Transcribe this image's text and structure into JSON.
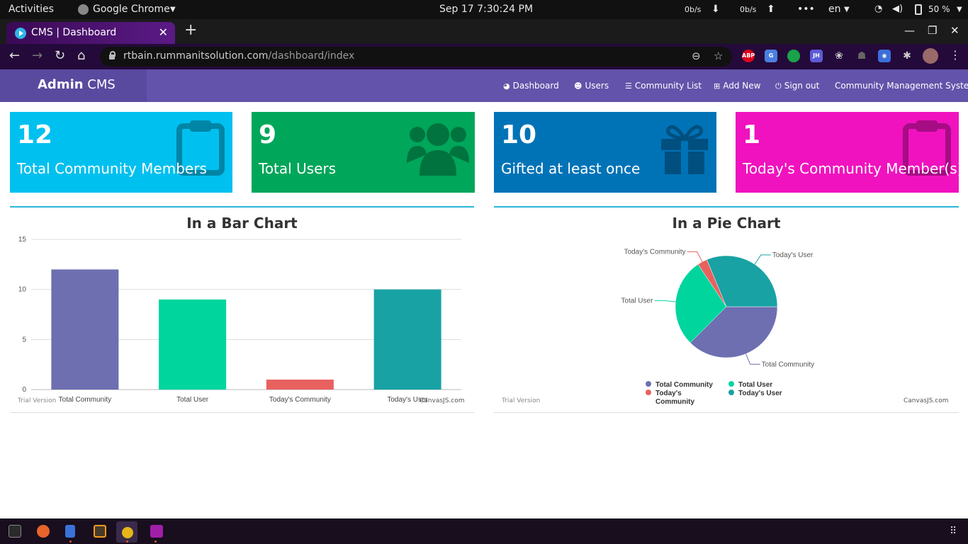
{
  "system_bar": {
    "activities": "Activities",
    "app_name": "Google Chrome",
    "datetime": "Sep 17  7:30:24 PM",
    "net_down": "0b/s",
    "net_up": "0b/s",
    "lang": "en",
    "battery": "50 %"
  },
  "browser": {
    "tab_title": "CMS | Dashboard",
    "url_host": "rtbain.rummanitsolution.com",
    "url_path": "/dashboard/index",
    "extensions": [
      {
        "name": "adblock-plus-icon",
        "label": "ABP",
        "color": "#d9041c"
      },
      {
        "name": "translate-icon",
        "label": "G",
        "color": "#4a7fe0"
      },
      {
        "name": "green-ext-icon",
        "label": "",
        "color": "#1aa34a"
      },
      {
        "name": "jh-ext-icon",
        "label": "JH",
        "color": "#5b5bd6"
      }
    ]
  },
  "navbar": {
    "brand_bold": "Admin",
    "brand_rest": "CMS",
    "links": {
      "dashboard": "Dashboard",
      "users": "Users",
      "community_list": "Community List",
      "add_new": "Add New",
      "sign_out": "Sign out",
      "system_name": "Community Management System"
    }
  },
  "stats": [
    {
      "value": "12",
      "label": "Total Community Members",
      "color": "#00c0ef",
      "icon": "clipboard-icon"
    },
    {
      "value": "9",
      "label": "Total Users",
      "color": "#00a65a",
      "icon": "users-icon"
    },
    {
      "value": "10",
      "label": "Gifted at least once",
      "color": "#0073b7",
      "icon": "gift-icon"
    },
    {
      "value": "1",
      "label": "Today's Community Member(s)",
      "color": "#f012be",
      "icon": "clipboard-icon"
    }
  ],
  "bar_panel": {
    "title": "In a Bar Chart",
    "trial": "Trial Version",
    "credit": "CanvasJS.com"
  },
  "pie_panel": {
    "title": "In a Pie Chart",
    "trial": "Trial Version",
    "credit": "CanvasJS.com"
  },
  "chart_data": [
    {
      "type": "bar",
      "title": "In a Bar Chart",
      "categories": [
        "Total Community",
        "Total User",
        "Today's Community",
        "Today's User"
      ],
      "values": [
        12,
        9,
        1,
        10
      ],
      "colors": [
        "#6d6fb0",
        "#00d59e",
        "#e8615f",
        "#18a2a4"
      ],
      "ylim": [
        0,
        15
      ],
      "yticks": [
        0,
        5,
        10,
        15
      ],
      "grid": true
    },
    {
      "type": "pie",
      "title": "In a Pie Chart",
      "labels": [
        "Total Community",
        "Total User",
        "Today's Community",
        "Today's User"
      ],
      "values": [
        12,
        9,
        1,
        10
      ],
      "colors": [
        "#6d6fb0",
        "#00d59e",
        "#e8615f",
        "#18a2a4"
      ],
      "legend": "bottom"
    }
  ]
}
